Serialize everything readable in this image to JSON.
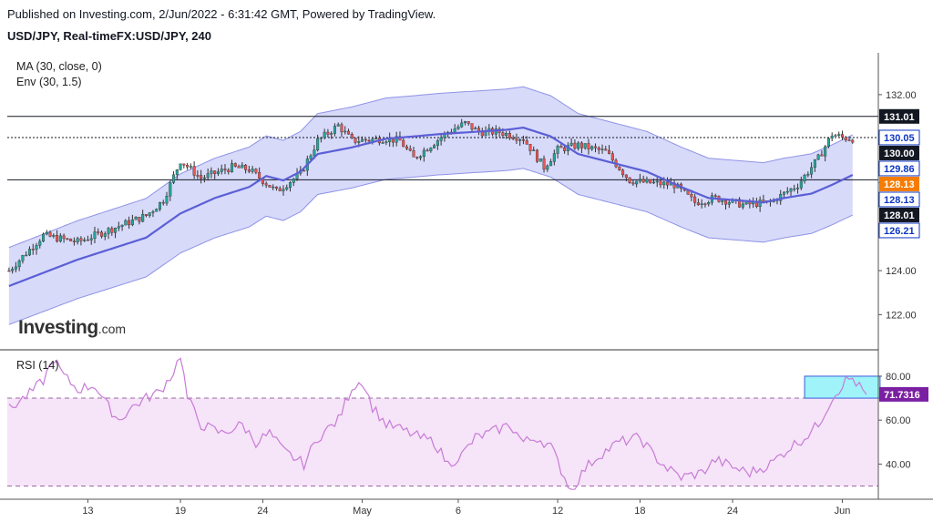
{
  "header": {
    "published": "Published on Investing.com, 2/Jun/2022 - 6:31:42 GMT, Powered by TradingView.",
    "symbol": "USD/JPY, Real-timeFX:USD/JPY, 240"
  },
  "indicators": {
    "ma": "MA (30, close, 0)",
    "env": "Env (30, 1.5)",
    "rsi": "RSI (14)"
  },
  "logo": {
    "brand": "Investing",
    "suffix": ".com"
  },
  "colors": {
    "up": "#26a69a",
    "down": "#ef5350",
    "ma": "#5b5fd6",
    "envFill": "#cdd1f7",
    "envLine": "#8f93e6",
    "rsi": "#c77bd6",
    "rsiFill": "#f6e4f8",
    "badgeBlue": "#0d36c4",
    "badgeOrange": "#f57c00",
    "badgeBlack": "#131722"
  },
  "chart_data": [
    {
      "type": "candlestick",
      "title": "USD/JPY, Real-timeFX:USD/JPY, 240",
      "ylim": [
        120.4,
        133.9
      ],
      "y_ticks": [
        "122.00",
        "124.00",
        "126.00",
        "128.00",
        "130.00",
        "132.00"
      ],
      "y_tick_values": [
        122,
        124,
        126,
        128,
        130,
        132
      ],
      "x_ticks": [
        "13",
        "19",
        "24",
        "May",
        "6",
        "12",
        "18",
        "24",
        "Jun"
      ],
      "x_tick_bars": [
        23,
        50,
        74,
        103,
        131,
        160,
        184,
        211,
        243
      ],
      "bar_count": 254,
      "close_anchors": [
        [
          0,
          124.0
        ],
        [
          10,
          125.6
        ],
        [
          20,
          125.3
        ],
        [
          30,
          125.9
        ],
        [
          40,
          126.5
        ],
        [
          45,
          127.2
        ],
        [
          50,
          129.0
        ],
        [
          56,
          128.2
        ],
        [
          65,
          128.7
        ],
        [
          70,
          128.6
        ],
        [
          78,
          127.6
        ],
        [
          85,
          128.4
        ],
        [
          90,
          129.9
        ],
        [
          96,
          130.6
        ],
        [
          100,
          129.9
        ],
        [
          110,
          130.0
        ],
        [
          114,
          129.9
        ],
        [
          118,
          129.1
        ],
        [
          123,
          129.7
        ],
        [
          128,
          130.3
        ],
        [
          133,
          130.7
        ],
        [
          137,
          130.3
        ],
        [
          143,
          130.3
        ],
        [
          150,
          130.0
        ],
        [
          156,
          128.7
        ],
        [
          160,
          129.5
        ],
        [
          166,
          129.7
        ],
        [
          174,
          129.4
        ],
        [
          181,
          128.1
        ],
        [
          186,
          128.0
        ],
        [
          194,
          127.9
        ],
        [
          200,
          127.1
        ],
        [
          206,
          127.3
        ],
        [
          214,
          127.0
        ],
        [
          222,
          127.1
        ],
        [
          230,
          127.9
        ],
        [
          236,
          129.1
        ],
        [
          240,
          130.2
        ],
        [
          243,
          130.05
        ],
        [
          246,
          130.0
        ]
      ],
      "ma_anchors": [
        [
          0,
          123.3
        ],
        [
          10,
          123.9
        ],
        [
          20,
          124.5
        ],
        [
          30,
          125.0
        ],
        [
          40,
          125.5
        ],
        [
          50,
          126.6
        ],
        [
          60,
          127.3
        ],
        [
          70,
          127.8
        ],
        [
          75,
          128.3
        ],
        [
          80,
          128.1
        ],
        [
          85,
          128.5
        ],
        [
          90,
          129.3
        ],
        [
          100,
          129.6
        ],
        [
          110,
          130.0
        ],
        [
          118,
          130.1
        ],
        [
          125,
          130.2
        ],
        [
          135,
          130.3
        ],
        [
          145,
          130.4
        ],
        [
          150,
          130.5
        ],
        [
          158,
          130.1
        ],
        [
          166,
          129.3
        ],
        [
          176,
          128.9
        ],
        [
          186,
          128.5
        ],
        [
          196,
          127.8
        ],
        [
          204,
          127.3
        ],
        [
          212,
          127.2
        ],
        [
          220,
          127.1
        ],
        [
          226,
          127.3
        ],
        [
          234,
          127.5
        ],
        [
          240,
          127.9
        ],
        [
          246,
          128.35
        ]
      ],
      "env_upper_last": 129.86,
      "env_lower_last": 126.21,
      "horizontal_lines": [
        131.01,
        130.05,
        128.13
      ],
      "badges": [
        {
          "label": "131.01",
          "value": 131.01,
          "style": "black"
        },
        {
          "label": "130.05",
          "value": 130.05,
          "style": "blue"
        },
        {
          "label": "130.00",
          "value": 130.0,
          "style": "black"
        },
        {
          "label": "129.86",
          "value": 129.86,
          "style": "blue"
        },
        {
          "label": "128.13",
          "value": 128.13,
          "style": "orange"
        },
        {
          "label": "128.13",
          "value": 128.13,
          "style": "blue"
        },
        {
          "label": "128.01",
          "value": 128.01,
          "style": "black"
        },
        {
          "label": "126.21",
          "value": 126.21,
          "style": "blue"
        }
      ]
    },
    {
      "type": "line",
      "title": "RSI (14)",
      "ylim": [
        24,
        92
      ],
      "y_ticks": [
        "40.00",
        "60.00",
        "80.00"
      ],
      "y_tick_values": [
        40,
        60,
        80
      ],
      "bands": [
        30,
        70
      ],
      "rsi_anchors": [
        [
          0,
          65
        ],
        [
          6,
          72
        ],
        [
          10,
          78
        ],
        [
          13,
          88
        ],
        [
          16,
          80
        ],
        [
          20,
          74
        ],
        [
          25,
          76
        ],
        [
          28,
          68
        ],
        [
          32,
          60
        ],
        [
          36,
          66
        ],
        [
          40,
          70
        ],
        [
          44,
          73
        ],
        [
          48,
          82
        ],
        [
          50,
          90
        ],
        [
          52,
          70
        ],
        [
          56,
          58
        ],
        [
          62,
          54
        ],
        [
          68,
          58
        ],
        [
          72,
          50
        ],
        [
          76,
          54
        ],
        [
          80,
          46
        ],
        [
          84,
          42
        ],
        [
          86,
          40
        ],
        [
          90,
          52
        ],
        [
          96,
          60
        ],
        [
          100,
          75
        ],
        [
          103,
          78
        ],
        [
          106,
          66
        ],
        [
          110,
          58
        ],
        [
          114,
          56
        ],
        [
          120,
          52
        ],
        [
          124,
          50
        ],
        [
          128,
          40
        ],
        [
          132,
          44
        ],
        [
          136,
          52
        ],
        [
          140,
          54
        ],
        [
          146,
          58
        ],
        [
          150,
          50
        ],
        [
          154,
          52
        ],
        [
          158,
          48
        ],
        [
          162,
          34
        ],
        [
          164,
          28
        ],
        [
          168,
          38
        ],
        [
          172,
          44
        ],
        [
          178,
          50
        ],
        [
          184,
          52
        ],
        [
          188,
          44
        ],
        [
          192,
          38
        ],
        [
          196,
          34
        ],
        [
          202,
          36
        ],
        [
          206,
          42
        ],
        [
          212,
          38
        ],
        [
          216,
          36
        ],
        [
          222,
          40
        ],
        [
          228,
          48
        ],
        [
          232,
          52
        ],
        [
          236,
          58
        ],
        [
          240,
          70
        ],
        [
          244,
          78
        ],
        [
          246,
          79
        ],
        [
          248,
          75
        ],
        [
          250,
          71.73
        ]
      ],
      "last_value_label": "71.7316",
      "highlight_box": {
        "bar_from": 232,
        "bar_to": 254,
        "y_from": 70,
        "y_to": 80
      }
    }
  ]
}
